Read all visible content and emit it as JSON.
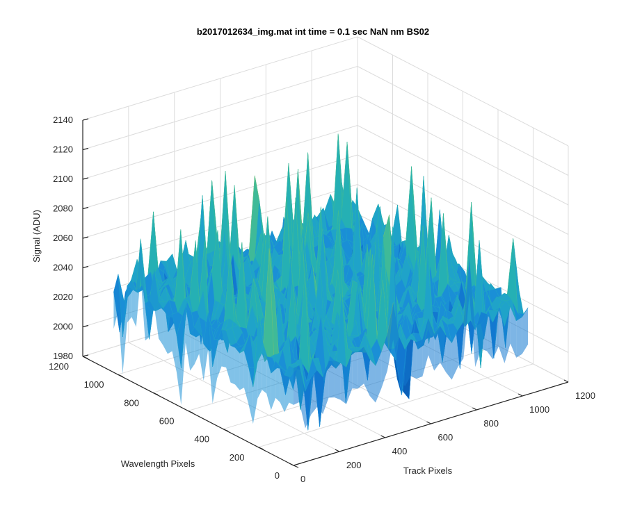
{
  "chart_data": {
    "type": "surface",
    "title": "b2017012634_img.mat int time = 0.1 sec  NaN nm BS02",
    "xlabel": "Track Pixels",
    "ylabel": "Wavelength Pixels",
    "zlabel": "Signal (ADU)",
    "xlim": [
      0,
      1200
    ],
    "ylim": [
      0,
      1200
    ],
    "zlim": [
      1980,
      2140
    ],
    "xticks": [
      "0",
      "200",
      "400",
      "600",
      "800",
      "1000",
      "1200"
    ],
    "yticks": [
      "0",
      "200",
      "400",
      "600",
      "800",
      "1000",
      "1200"
    ],
    "zticks": [
      "1980",
      "2000",
      "2020",
      "2040",
      "2060",
      "2080",
      "2100",
      "2120",
      "2140"
    ],
    "data_extent": {
      "x": [
        0,
        1024
      ],
      "y": [
        0,
        1024
      ]
    },
    "signal_summary": {
      "mean_approx": 2040,
      "min_approx": 1990,
      "max_approx": 2125
    },
    "colormap": "parula",
    "grid": true
  }
}
